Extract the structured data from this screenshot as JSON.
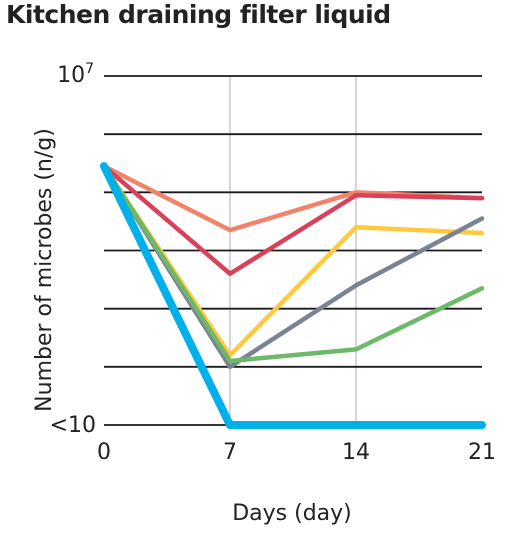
{
  "title": "Kitchen draining filter liquid",
  "chart_data": {
    "type": "line",
    "title": "Kitchen draining filter liquid",
    "xlabel": "Days (day)",
    "ylabel": "Number of microbes (n/g)",
    "x": [
      0,
      7,
      14,
      21
    ],
    "x_tick_labels": [
      "0",
      "7",
      "14",
      "21"
    ],
    "y_scale": "log",
    "ylim": [
      1,
      7
    ],
    "y_tick_top": {
      "base": "10",
      "exp": "7"
    },
    "y_tick_bottom": "<10",
    "grid": {
      "horizontal": true,
      "vertical_at_x": [
        7,
        14
      ]
    },
    "series": [
      {
        "color": "#F2836B",
        "values": [
          5.45,
          4.35,
          5.0,
          4.9
        ]
      },
      {
        "color": "#D9415B",
        "values": [
          5.45,
          3.6,
          4.95,
          4.9
        ]
      },
      {
        "color": "#FFC83D",
        "values": [
          5.45,
          2.2,
          4.4,
          4.3
        ]
      },
      {
        "color": "#7A8393",
        "values": [
          5.45,
          2.0,
          3.4,
          4.55
        ]
      },
      {
        "color": "#6DB86A",
        "values": [
          5.45,
          2.1,
          2.3,
          3.35
        ]
      },
      {
        "color": "#00B0E8",
        "values": [
          5.45,
          1.0,
          1.0,
          1.0
        ]
      }
    ]
  }
}
